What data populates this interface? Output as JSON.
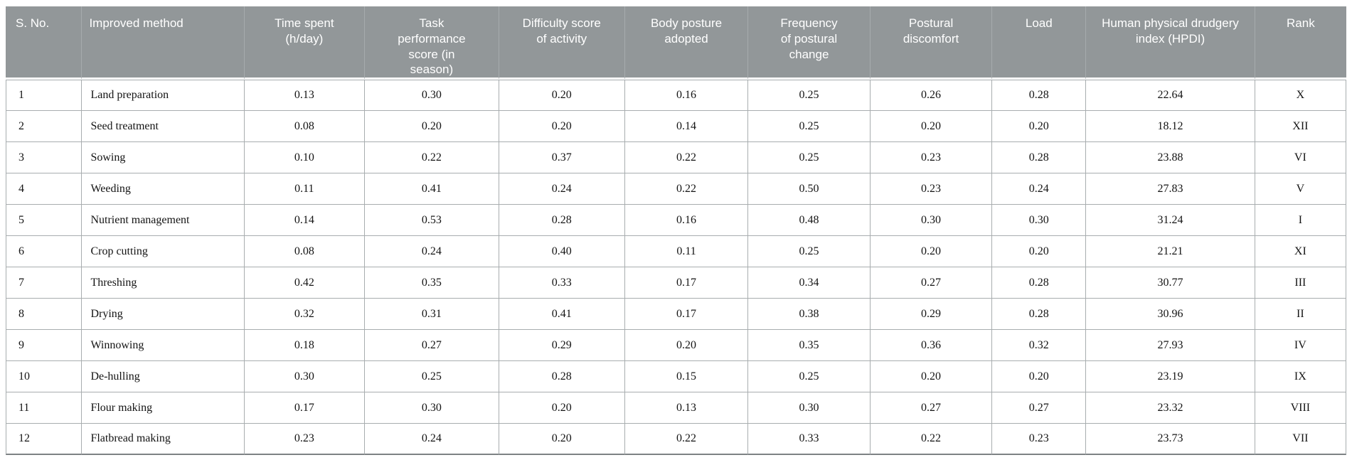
{
  "colors": {
    "header_background": "#929799",
    "header_divider": "#a6abad",
    "header_text": "#ffffff",
    "body_border": "#a8adaf",
    "bottom_border": "#7d8284",
    "body_text": "#141414",
    "page_background": "#ffffff"
  },
  "table": {
    "columns": [
      {
        "key": "s_no",
        "label": "S. No."
      },
      {
        "key": "method",
        "label": "Improved method"
      },
      {
        "key": "time",
        "label": "Time spent (h/day)"
      },
      {
        "key": "task",
        "label": "Task performance score (in season)"
      },
      {
        "key": "difficulty",
        "label": "Difficulty score of activity"
      },
      {
        "key": "body",
        "label": "Body posture adopted"
      },
      {
        "key": "frequency",
        "label": "Frequency of postural change"
      },
      {
        "key": "discomfort",
        "label": "Postural discomfort"
      },
      {
        "key": "load",
        "label": "Load"
      },
      {
        "key": "hpdi",
        "label": "Human physical drudgery index (HPDI)"
      },
      {
        "key": "rank",
        "label": "Rank"
      }
    ],
    "rows": [
      {
        "s_no": "1",
        "method": "Land preparation",
        "time": "0.13",
        "task": "0.30",
        "difficulty": "0.20",
        "body": "0.16",
        "frequency": "0.25",
        "discomfort": "0.26",
        "load": "0.28",
        "hpdi": "22.64",
        "rank": "X"
      },
      {
        "s_no": "2",
        "method": "Seed treatment",
        "time": "0.08",
        "task": "0.20",
        "difficulty": "0.20",
        "body": "0.14",
        "frequency": "0.25",
        "discomfort": "0.20",
        "load": "0.20",
        "hpdi": "18.12",
        "rank": "XII"
      },
      {
        "s_no": "3",
        "method": "Sowing",
        "time": "0.10",
        "task": "0.22",
        "difficulty": "0.37",
        "body": "0.22",
        "frequency": "0.25",
        "discomfort": "0.23",
        "load": "0.28",
        "hpdi": "23.88",
        "rank": "VI"
      },
      {
        "s_no": "4",
        "method": "Weeding",
        "time": "0.11",
        "task": "0.41",
        "difficulty": "0.24",
        "body": "0.22",
        "frequency": "0.50",
        "discomfort": "0.23",
        "load": "0.24",
        "hpdi": "27.83",
        "rank": "V"
      },
      {
        "s_no": "5",
        "method": "Nutrient management",
        "time": "0.14",
        "task": "0.53",
        "difficulty": "0.28",
        "body": "0.16",
        "frequency": "0.48",
        "discomfort": "0.30",
        "load": "0.30",
        "hpdi": "31.24",
        "rank": "I"
      },
      {
        "s_no": "6",
        "method": "Crop cutting",
        "time": "0.08",
        "task": "0.24",
        "difficulty": "0.40",
        "body": "0.11",
        "frequency": "0.25",
        "discomfort": "0.20",
        "load": "0.20",
        "hpdi": "21.21",
        "rank": "XI"
      },
      {
        "s_no": "7",
        "method": "Threshing",
        "time": "0.42",
        "task": "0.35",
        "difficulty": "0.33",
        "body": "0.17",
        "frequency": "0.34",
        "discomfort": "0.27",
        "load": "0.28",
        "hpdi": "30.77",
        "rank": "III"
      },
      {
        "s_no": "8",
        "method": "Drying",
        "time": "0.32",
        "task": "0.31",
        "difficulty": "0.41",
        "body": "0.17",
        "frequency": "0.38",
        "discomfort": "0.29",
        "load": "0.28",
        "hpdi": "30.96",
        "rank": "II"
      },
      {
        "s_no": "9",
        "method": "Winnowing",
        "time": "0.18",
        "task": "0.27",
        "difficulty": "0.29",
        "body": "0.20",
        "frequency": "0.35",
        "discomfort": "0.36",
        "load": "0.32",
        "hpdi": "27.93",
        "rank": "IV"
      },
      {
        "s_no": "10",
        "method": "De-hulling",
        "time": "0.30",
        "task": "0.25",
        "difficulty": "0.28",
        "body": "0.15",
        "frequency": "0.25",
        "discomfort": "0.20",
        "load": "0.20",
        "hpdi": "23.19",
        "rank": "IX"
      },
      {
        "s_no": "11",
        "method": "Flour making",
        "time": "0.17",
        "task": "0.30",
        "difficulty": "0.20",
        "body": "0.13",
        "frequency": "0.30",
        "discomfort": "0.27",
        "load": "0.27",
        "hpdi": "23.32",
        "rank": "VIII"
      },
      {
        "s_no": "12",
        "method": "Flatbread making",
        "time": "0.23",
        "task": "0.24",
        "difficulty": "0.20",
        "body": "0.22",
        "frequency": "0.33",
        "discomfort": "0.22",
        "load": "0.23",
        "hpdi": "23.73",
        "rank": "VII"
      }
    ]
  }
}
